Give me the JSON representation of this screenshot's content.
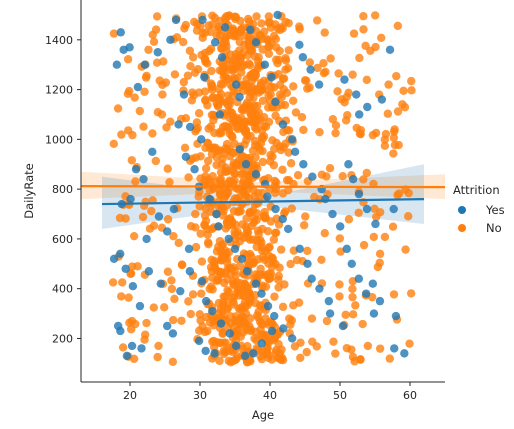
{
  "colors": {
    "yes": "#1f77b4",
    "no": "#ff7f0e",
    "axis": "#262626",
    "background": "#ffffff"
  },
  "chart_data": {
    "type": "scatter",
    "title": "",
    "xlabel": "Age",
    "ylabel": "DailyRate",
    "xlim": [
      13,
      65
    ],
    "ylim": [
      25,
      1560
    ],
    "xticks": [
      20,
      30,
      40,
      50,
      60
    ],
    "yticks": [
      200,
      400,
      600,
      800,
      1000,
      1200,
      1400
    ],
    "grid": false,
    "legend": {
      "title": "Attrition",
      "placement": "right",
      "entries": [
        "Yes",
        "No"
      ]
    },
    "point_counts": {
      "Yes": 237,
      "No": 1233
    },
    "series": [
      {
        "name": "Yes",
        "color": "#1f77b4",
        "regression": {
          "x_start": 16,
          "y_start": 740,
          "x_end": 62,
          "y_end": 760
        },
        "ci_band": {
          "low_at_start": 640,
          "high_at_start": 850,
          "low_at_end": 660,
          "high_at_end": 900
        },
        "points": [
          [
            18,
            1300
          ],
          [
            19,
            1360
          ],
          [
            19,
            1430
          ],
          [
            20,
            1370
          ],
          [
            21,
            1210
          ],
          [
            22,
            1300
          ],
          [
            24,
            1350
          ],
          [
            18,
            520
          ],
          [
            19,
            540
          ],
          [
            19,
            480
          ],
          [
            20,
            410
          ],
          [
            21,
            330
          ],
          [
            18,
            250
          ],
          [
            19,
            230
          ],
          [
            20,
            170
          ],
          [
            20,
            130
          ],
          [
            22,
            160
          ],
          [
            19,
            740
          ],
          [
            20,
            760
          ],
          [
            21,
            880
          ],
          [
            22,
            840
          ],
          [
            23,
            950
          ],
          [
            24,
            690
          ],
          [
            25,
            630
          ],
          [
            26,
            720
          ],
          [
            22,
            600
          ],
          [
            23,
            470
          ],
          [
            24,
            420
          ],
          [
            25,
            250
          ],
          [
            26,
            220
          ],
          [
            27,
            390
          ],
          [
            28,
            1180
          ],
          [
            29,
            1050
          ],
          [
            30,
            1000
          ],
          [
            31,
            1250
          ],
          [
            32,
            1390
          ],
          [
            33,
            1330
          ],
          [
            27,
            1480
          ],
          [
            28,
            930
          ],
          [
            29,
            880
          ],
          [
            30,
            810
          ],
          [
            31,
            760
          ],
          [
            32,
            700
          ],
          [
            33,
            650
          ],
          [
            34,
            600
          ],
          [
            35,
            560
          ],
          [
            29,
            470
          ],
          [
            30,
            430
          ],
          [
            31,
            350
          ],
          [
            32,
            310
          ],
          [
            33,
            260
          ],
          [
            34,
            220
          ],
          [
            35,
            170
          ],
          [
            36,
            130
          ],
          [
            37,
            1440
          ],
          [
            38,
            1390
          ],
          [
            39,
            1300
          ],
          [
            40,
            1250
          ],
          [
            41,
            1150
          ],
          [
            42,
            1060
          ],
          [
            43,
            1000
          ],
          [
            36,
            960
          ],
          [
            37,
            900
          ],
          [
            38,
            860
          ],
          [
            39,
            820
          ],
          [
            40,
            770
          ],
          [
            41,
            720
          ],
          [
            42,
            680
          ],
          [
            43,
            640
          ],
          [
            36,
            520
          ],
          [
            37,
            470
          ],
          [
            38,
            420
          ],
          [
            39,
            380
          ],
          [
            40,
            330
          ],
          [
            41,
            290
          ],
          [
            42,
            240
          ],
          [
            43,
            200
          ],
          [
            44,
            1380
          ],
          [
            45,
            1330
          ],
          [
            46,
            1280
          ],
          [
            47,
            1220
          ],
          [
            44,
            950
          ],
          [
            45,
            900
          ],
          [
            46,
            850
          ],
          [
            47,
            800
          ],
          [
            48,
            760
          ],
          [
            49,
            700
          ],
          [
            50,
            650
          ],
          [
            44,
            560
          ],
          [
            45,
            500
          ],
          [
            46,
            440
          ],
          [
            47,
            400
          ],
          [
            48,
            350
          ],
          [
            49,
            300
          ],
          [
            50,
            250
          ],
          [
            51,
            1240
          ],
          [
            52,
            1180
          ],
          [
            53,
            1100
          ],
          [
            51,
            900
          ],
          [
            52,
            840
          ],
          [
            53,
            780
          ],
          [
            54,
            720
          ],
          [
            55,
            660
          ],
          [
            51,
            560
          ],
          [
            52,
            500
          ],
          [
            53,
            440
          ],
          [
            54,
            380
          ],
          [
            55,
            300
          ],
          [
            56,
            1160
          ],
          [
            57,
            1360
          ],
          [
            58,
            720
          ],
          [
            58,
            160
          ],
          [
            59,
            140
          ],
          [
            58,
            290
          ],
          [
            56,
            350
          ],
          [
            55,
            420
          ],
          [
            54,
            1130
          ],
          [
            26,
            1400
          ],
          [
            27,
            1060
          ],
          [
            28,
            560
          ],
          [
            34,
            1450
          ],
          [
            35,
            1220
          ],
          [
            36,
            1170
          ],
          [
            33,
            1100
          ],
          [
            30,
            190
          ],
          [
            31,
            150
          ],
          [
            32,
            140
          ],
          [
            38,
            140
          ],
          [
            39,
            180
          ],
          [
            40,
            230
          ],
          [
            41,
            1500
          ],
          [
            30,
            1480
          ]
        ]
      },
      {
        "name": "No",
        "color": "#ff7f0e",
        "regression": {
          "x_start": 13,
          "y_start": 812,
          "x_end": 65,
          "y_end": 808
        },
        "ci_band": {
          "low_at_start": 760,
          "high_at_start": 870,
          "low_at_end": 760,
          "high_at_end": 860
        },
        "points": []
      }
    ]
  }
}
